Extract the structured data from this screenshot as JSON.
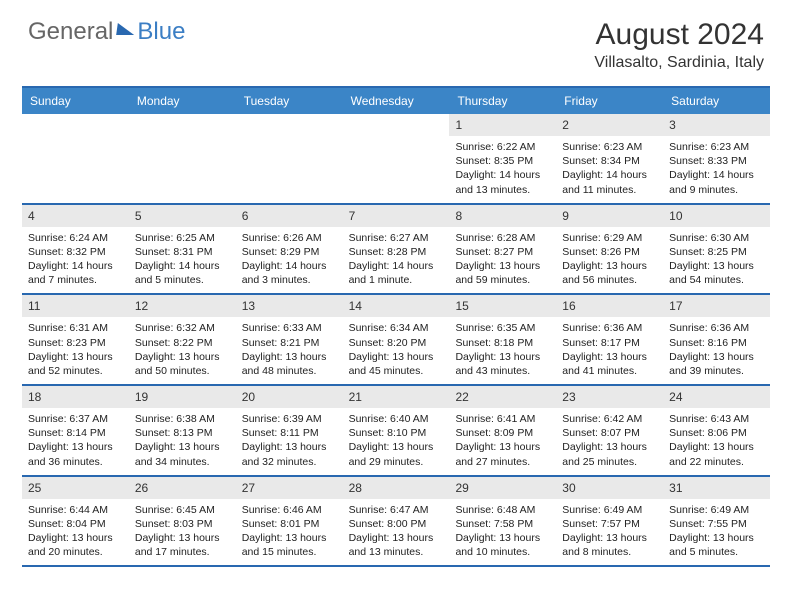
{
  "brand": {
    "general": "General",
    "blue": "Blue"
  },
  "title": "August 2024",
  "location": "Villasalto, Sardinia, Italy",
  "colors": {
    "header_bg": "#3b85c7",
    "border": "#2968b0",
    "daynum_bg": "#e9e9e9",
    "text": "#222222",
    "brand_gray": "#666666",
    "brand_blue": "#3b7ec4"
  },
  "weekdays": [
    "Sunday",
    "Monday",
    "Tuesday",
    "Wednesday",
    "Thursday",
    "Friday",
    "Saturday"
  ],
  "weeks": [
    [
      null,
      null,
      null,
      null,
      {
        "n": "1",
        "sunrise": "6:22 AM",
        "sunset": "8:35 PM",
        "daylight": "14 hours and 13 minutes."
      },
      {
        "n": "2",
        "sunrise": "6:23 AM",
        "sunset": "8:34 PM",
        "daylight": "14 hours and 11 minutes."
      },
      {
        "n": "3",
        "sunrise": "6:23 AM",
        "sunset": "8:33 PM",
        "daylight": "14 hours and 9 minutes."
      }
    ],
    [
      {
        "n": "4",
        "sunrise": "6:24 AM",
        "sunset": "8:32 PM",
        "daylight": "14 hours and 7 minutes."
      },
      {
        "n": "5",
        "sunrise": "6:25 AM",
        "sunset": "8:31 PM",
        "daylight": "14 hours and 5 minutes."
      },
      {
        "n": "6",
        "sunrise": "6:26 AM",
        "sunset": "8:29 PM",
        "daylight": "14 hours and 3 minutes."
      },
      {
        "n": "7",
        "sunrise": "6:27 AM",
        "sunset": "8:28 PM",
        "daylight": "14 hours and 1 minute."
      },
      {
        "n": "8",
        "sunrise": "6:28 AM",
        "sunset": "8:27 PM",
        "daylight": "13 hours and 59 minutes."
      },
      {
        "n": "9",
        "sunrise": "6:29 AM",
        "sunset": "8:26 PM",
        "daylight": "13 hours and 56 minutes."
      },
      {
        "n": "10",
        "sunrise": "6:30 AM",
        "sunset": "8:25 PM",
        "daylight": "13 hours and 54 minutes."
      }
    ],
    [
      {
        "n": "11",
        "sunrise": "6:31 AM",
        "sunset": "8:23 PM",
        "daylight": "13 hours and 52 minutes."
      },
      {
        "n": "12",
        "sunrise": "6:32 AM",
        "sunset": "8:22 PM",
        "daylight": "13 hours and 50 minutes."
      },
      {
        "n": "13",
        "sunrise": "6:33 AM",
        "sunset": "8:21 PM",
        "daylight": "13 hours and 48 minutes."
      },
      {
        "n": "14",
        "sunrise": "6:34 AM",
        "sunset": "8:20 PM",
        "daylight": "13 hours and 45 minutes."
      },
      {
        "n": "15",
        "sunrise": "6:35 AM",
        "sunset": "8:18 PM",
        "daylight": "13 hours and 43 minutes."
      },
      {
        "n": "16",
        "sunrise": "6:36 AM",
        "sunset": "8:17 PM",
        "daylight": "13 hours and 41 minutes."
      },
      {
        "n": "17",
        "sunrise": "6:36 AM",
        "sunset": "8:16 PM",
        "daylight": "13 hours and 39 minutes."
      }
    ],
    [
      {
        "n": "18",
        "sunrise": "6:37 AM",
        "sunset": "8:14 PM",
        "daylight": "13 hours and 36 minutes."
      },
      {
        "n": "19",
        "sunrise": "6:38 AM",
        "sunset": "8:13 PM",
        "daylight": "13 hours and 34 minutes."
      },
      {
        "n": "20",
        "sunrise": "6:39 AM",
        "sunset": "8:11 PM",
        "daylight": "13 hours and 32 minutes."
      },
      {
        "n": "21",
        "sunrise": "6:40 AM",
        "sunset": "8:10 PM",
        "daylight": "13 hours and 29 minutes."
      },
      {
        "n": "22",
        "sunrise": "6:41 AM",
        "sunset": "8:09 PM",
        "daylight": "13 hours and 27 minutes."
      },
      {
        "n": "23",
        "sunrise": "6:42 AM",
        "sunset": "8:07 PM",
        "daylight": "13 hours and 25 minutes."
      },
      {
        "n": "24",
        "sunrise": "6:43 AM",
        "sunset": "8:06 PM",
        "daylight": "13 hours and 22 minutes."
      }
    ],
    [
      {
        "n": "25",
        "sunrise": "6:44 AM",
        "sunset": "8:04 PM",
        "daylight": "13 hours and 20 minutes."
      },
      {
        "n": "26",
        "sunrise": "6:45 AM",
        "sunset": "8:03 PM",
        "daylight": "13 hours and 17 minutes."
      },
      {
        "n": "27",
        "sunrise": "6:46 AM",
        "sunset": "8:01 PM",
        "daylight": "13 hours and 15 minutes."
      },
      {
        "n": "28",
        "sunrise": "6:47 AM",
        "sunset": "8:00 PM",
        "daylight": "13 hours and 13 minutes."
      },
      {
        "n": "29",
        "sunrise": "6:48 AM",
        "sunset": "7:58 PM",
        "daylight": "13 hours and 10 minutes."
      },
      {
        "n": "30",
        "sunrise": "6:49 AM",
        "sunset": "7:57 PM",
        "daylight": "13 hours and 8 minutes."
      },
      {
        "n": "31",
        "sunrise": "6:49 AM",
        "sunset": "7:55 PM",
        "daylight": "13 hours and 5 minutes."
      }
    ]
  ],
  "labels": {
    "sunrise": "Sunrise:",
    "sunset": "Sunset:",
    "daylight": "Daylight:"
  }
}
